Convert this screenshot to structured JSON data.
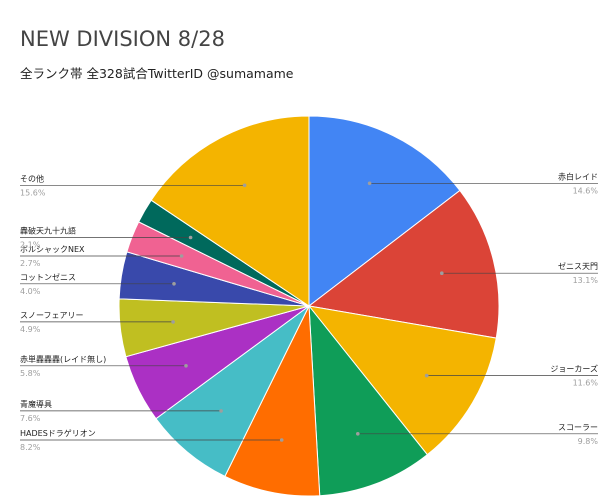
{
  "chart_data": {
    "type": "pie",
    "title": "NEW DIVISION 8/28",
    "subtitle": "全ランク帯 全328試合TwitterID @sumamame",
    "slices": [
      {
        "label": "赤白レイド",
        "pct_label": "14.6%",
        "value": 14.6,
        "color": "#4285f4"
      },
      {
        "label": "ゼニス天門",
        "pct_label": "13.1%",
        "value": 13.1,
        "color": "#db4437"
      },
      {
        "label": "ジョーカーズ",
        "pct_label": "11.6%",
        "value": 11.6,
        "color": "#f4b400"
      },
      {
        "label": "スコーラー",
        "pct_label": "9.8%",
        "value": 9.8,
        "color": "#0f9d58"
      },
      {
        "label": "HADESドラゲリオン",
        "pct_label": "8.2%",
        "value": 8.2,
        "color": "#ff6d00"
      },
      {
        "label": "青魔導具",
        "pct_label": "7.6%",
        "value": 7.6,
        "color": "#46bdc6"
      },
      {
        "label": "赤単轟轟轟(レイド無し)",
        "pct_label": "5.8%",
        "value": 5.8,
        "color": "#ab30c4"
      },
      {
        "label": "スノーフェアリー",
        "pct_label": "4.9%",
        "value": 4.9,
        "color": "#c0bf21"
      },
      {
        "label": "コットンゼニス",
        "pct_label": "4.0%",
        "value": 4.0,
        "color": "#3949ab"
      },
      {
        "label": "ボルシャックNEX",
        "pct_label": "2.7%",
        "value": 2.7,
        "color": "#f06292"
      },
      {
        "label": "轟破天九十九語",
        "pct_label": "2.1%",
        "value": 2.1,
        "color": "#00695c"
      },
      {
        "label": "その他",
        "pct_label": "15.6%",
        "value": 15.6,
        "color": "#f4b400"
      }
    ]
  }
}
